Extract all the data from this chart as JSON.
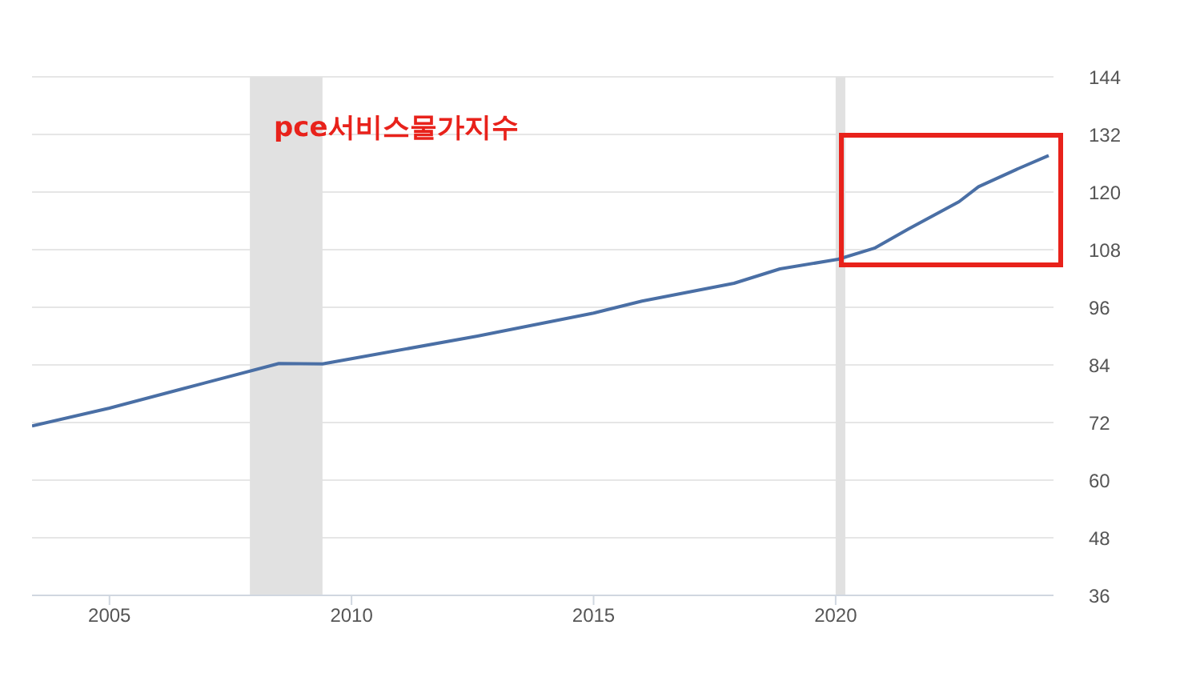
{
  "chart_data": {
    "type": "line",
    "title": "pce서비스물가지수",
    "series": [
      {
        "color": "#4a6fa5",
        "x": [
          2003.4,
          2005,
          2006.5,
          2008.5,
          2009.4,
          2010,
          2012.6,
          2015,
          2016,
          2017.9,
          2018.85,
          2020.05,
          2020.8,
          2021.5,
          2022.55,
          2022.95,
          2023.8,
          2024.4
        ],
        "values": [
          71.3,
          75,
          79,
          84.3,
          84.2,
          85.3,
          90,
          94.8,
          97.3,
          101,
          104,
          106,
          108.3,
          112.3,
          118,
          121.1,
          125,
          127.6
        ]
      }
    ],
    "xlim": [
      2003.4,
      2024.5
    ],
    "xticks": [
      2005,
      2010,
      2015,
      2020
    ],
    "ylim": [
      36,
      144
    ],
    "yticks": [
      36,
      48,
      60,
      72,
      84,
      96,
      108,
      120,
      132,
      144
    ],
    "bands": [
      {
        "axis": "x",
        "from": 2007.9,
        "to": 2009.4,
        "color": "#e1e1e1"
      },
      {
        "axis": "x",
        "from": 2020,
        "to": 2020.2,
        "color": "#e1e1e1"
      }
    ],
    "grid": "y",
    "legend": false,
    "marker": "none",
    "line_style": "solid"
  }
}
